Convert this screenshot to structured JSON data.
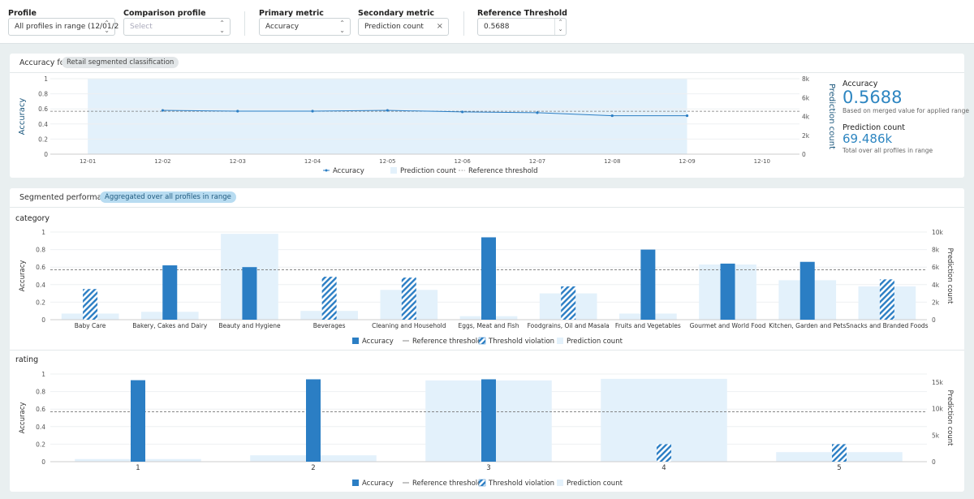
{
  "controls": {
    "profile": {
      "label": "Profile",
      "value": "All profiles in range (12/01/2"
    },
    "comparison": {
      "label": "Comparison profile",
      "placeholder": "Select"
    },
    "primary": {
      "label": "Primary metric",
      "value": "Accuracy"
    },
    "secondary": {
      "label": "Secondary metric",
      "value": "Prediction count"
    },
    "threshold": {
      "label": "Reference Threshold",
      "value": "0.5688"
    }
  },
  "accuracy_card": {
    "title": "Accuracy for",
    "model_pill": "Retail segmented classification"
  },
  "summary": {
    "metric_label": "Accuracy",
    "metric_value": "0.5688",
    "metric_note": "Based on merged value for applied range",
    "count_label": "Prediction count",
    "count_value": "69.486k",
    "count_note": "Total over all profiles in range"
  },
  "segment_card": {
    "title": "Segmented performance",
    "pill": "Aggregated over all profiles in range"
  },
  "colors": {
    "accuracy": "#2b7ec4",
    "prediction": "#e3f1fb",
    "threshold": "#777777"
  },
  "chart_data": [
    {
      "type": "line",
      "name": "timeseries",
      "x": [
        "12-01",
        "12-02",
        "12-03",
        "12-04",
        "12-05",
        "12-06",
        "12-07",
        "12-08",
        "12-09",
        "12-10"
      ],
      "series": [
        {
          "name": "Accuracy",
          "x": [
            "12-02",
            "12-03",
            "12-04",
            "12-05",
            "12-06",
            "12-07",
            "12-08",
            "12-09"
          ],
          "values": [
            0.58,
            0.57,
            0.57,
            0.58,
            0.56,
            0.55,
            0.51,
            0.51
          ]
        },
        {
          "name": "Prediction count",
          "range": [
            "12-01 12:00",
            "12-09 12:00"
          ]
        },
        {
          "name": "Reference threshold",
          "value": 0.5688
        }
      ],
      "ylabel": "Accuracy",
      "y2label": "Prediction count",
      "ylim": [
        0,
        1
      ],
      "y2lim": [
        0,
        8000
      ],
      "yticks": [
        "0",
        "0.2",
        "0.4",
        "0.6",
        "0.8",
        "1"
      ],
      "y2ticks": [
        "0",
        "2k",
        "4k",
        "6k",
        "8k"
      ],
      "legend": [
        "Accuracy",
        "Prediction count",
        "Reference threshold"
      ]
    },
    {
      "type": "bar",
      "name": "category",
      "section_label": "category",
      "categories": [
        "Baby Care",
        "Bakery, Cakes and Dairy",
        "Beauty and Hygiene",
        "Beverages",
        "Cleaning and Household",
        "Eggs, Meat and Fish",
        "Foodgrains, Oil and Masala",
        "Fruits and Vegetables",
        "Gourmet and World Food",
        "Kitchen, Garden and Pets",
        "Snacks and Branded Foods"
      ],
      "series": [
        {
          "name": "Accuracy",
          "values": [
            0.35,
            0.62,
            0.6,
            0.49,
            0.48,
            0.94,
            0.38,
            0.8,
            0.64,
            0.66,
            0.46
          ],
          "violation": [
            true,
            false,
            false,
            true,
            true,
            false,
            true,
            false,
            false,
            false,
            true
          ]
        },
        {
          "name": "Prediction count",
          "values": [
            700,
            900,
            9800,
            1000,
            3400,
            400,
            3000,
            700,
            6300,
            4500,
            3800
          ]
        }
      ],
      "threshold": 0.5688,
      "ylabel": "Accuracy",
      "y2label": "Prediction count",
      "ylim": [
        0,
        1
      ],
      "y2lim": [
        0,
        10000
      ],
      "yticks": [
        "0",
        "0.2",
        "0.4",
        "0.6",
        "0.8",
        "1"
      ],
      "y2ticks": [
        "0",
        "2k",
        "4k",
        "6k",
        "8k",
        "10k"
      ],
      "legend": [
        "Accuracy",
        "Reference threshold",
        "Threshold violation",
        "Prediction count"
      ]
    },
    {
      "type": "bar",
      "name": "rating",
      "section_label": "rating",
      "categories": [
        "1",
        "2",
        "3",
        "4",
        "5"
      ],
      "series": [
        {
          "name": "Accuracy",
          "values": [
            0.93,
            0.94,
            0.94,
            0.2,
            0.2
          ],
          "violation": [
            false,
            false,
            false,
            true,
            true
          ]
        },
        {
          "name": "Prediction count",
          "values": [
            500,
            1200,
            15300,
            15600,
            1800
          ]
        }
      ],
      "threshold": 0.5688,
      "ylabel": "Accuracy",
      "y2label": "Prediction count",
      "ylim": [
        0,
        1
      ],
      "y2lim": [
        0,
        16500
      ],
      "yticks": [
        "0",
        "0.2",
        "0.4",
        "0.6",
        "0.8",
        "1"
      ],
      "y2ticks": [
        "0",
        "5k",
        "10k",
        "15k"
      ],
      "y2tickvalues": [
        0,
        5000,
        10000,
        15000
      ],
      "legend": [
        "Accuracy",
        "Reference threshold",
        "Threshold violation",
        "Prediction count"
      ]
    }
  ]
}
